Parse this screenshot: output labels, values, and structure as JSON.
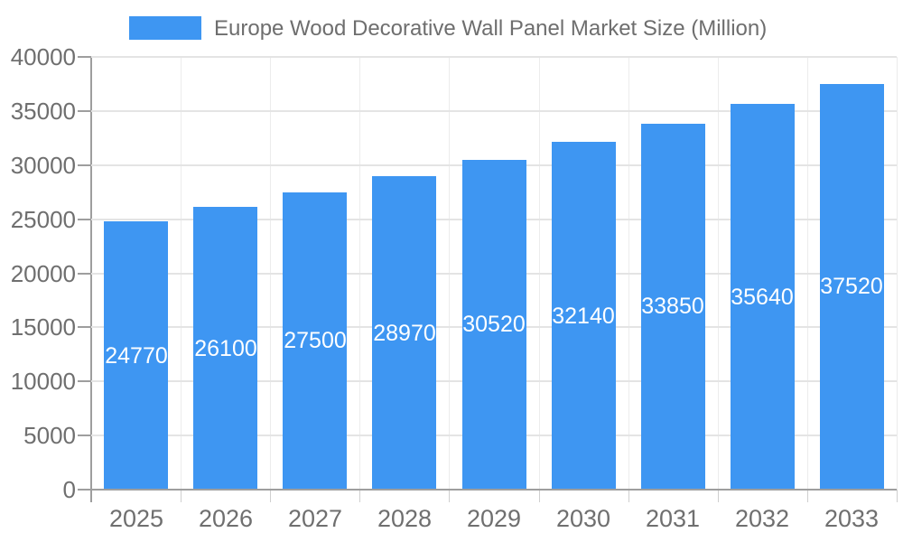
{
  "chart_data": {
    "type": "bar",
    "title": "Europe Wood Decorative Wall Panel Market Size (Million)",
    "categories": [
      "2025",
      "2026",
      "2027",
      "2028",
      "2029",
      "2030",
      "2031",
      "2032",
      "2033"
    ],
    "values": [
      24770,
      26100,
      27500,
      28970,
      30520,
      32140,
      33850,
      35640,
      37520
    ],
    "series": [
      {
        "name": "Europe Wood Decorative Wall Panel Market Size (Million)",
        "values": [
          24770,
          26100,
          27500,
          28970,
          30520,
          32140,
          33850,
          35640,
          37520
        ]
      }
    ],
    "xlabel": "",
    "ylabel": "",
    "ylim": [
      0,
      40000
    ],
    "y_ticks": [
      0,
      5000,
      10000,
      15000,
      20000,
      25000,
      30000,
      35000,
      40000
    ],
    "grid": true,
    "legend_position": "top",
    "bar_value_labels": "inside-center-white"
  },
  "legend": {
    "label": "Europe Wood Decorative Wall Panel Market Size (Million)"
  },
  "colors": {
    "bar": "#3E96F2",
    "title_text": "#6E6E6E",
    "axis_text": "#6F6F6F",
    "bar_label_text": "#FFFFFF",
    "gridline_horizontal": "#E4E4E4",
    "gridline_vertical": "#ECECEC",
    "axis_line": "#9E9E9E",
    "below_axis_tick": "#CFCFCF",
    "background": "#FFFFFF"
  }
}
